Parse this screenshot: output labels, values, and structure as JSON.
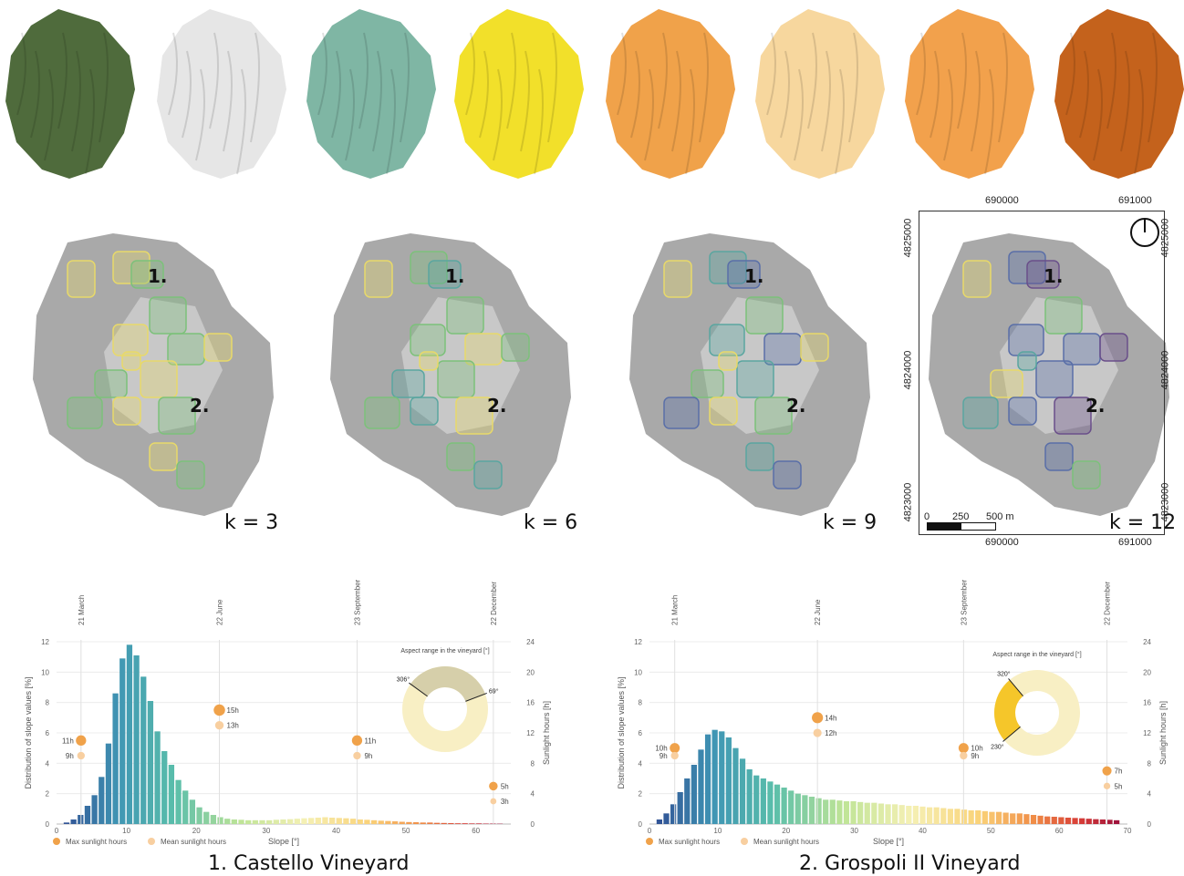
{
  "top_maps": [
    {
      "name": "aerial",
      "fill": "#4f6b3c"
    },
    {
      "name": "vineyards-outline",
      "fill": "#e6e6e6"
    },
    {
      "name": "slope",
      "fill": "#7fb6a4"
    },
    {
      "name": "aspect",
      "fill": "#f2e02a"
    },
    {
      "name": "sun-march",
      "fill": "#f0a24a"
    },
    {
      "name": "sun-june",
      "fill": "#f7d79e"
    },
    {
      "name": "sun-september",
      "fill": "#f2a14c"
    },
    {
      "name": "sun-december",
      "fill": "#c4621c"
    }
  ],
  "cluster_maps": [
    {
      "k_label": "k = 3",
      "label_1": "1.",
      "label_2": "2.",
      "accent": "#e8d96a"
    },
    {
      "k_label": "k = 6",
      "label_1": "1.",
      "label_2": "2.",
      "accent": "#7cc17a"
    },
    {
      "k_label": "k = 9",
      "label_1": "1.",
      "label_2": "2.",
      "accent": "#5aa6a0"
    },
    {
      "k_label": "k = 12",
      "label_1": "1.",
      "label_2": "2.",
      "accent": "#5a6fa8"
    }
  ],
  "coords": {
    "x_left": "690000",
    "x_right": "691000",
    "y_top": "4825000",
    "y_mid": "4824000",
    "y_bottom": "4823000",
    "scale_0": "0",
    "scale_250": "250",
    "scale_500": "500 m"
  },
  "charts": [
    {
      "title": "1. Castello Vineyard",
      "chart_data": {
        "type": "bar",
        "xlabel": "Slope [°]",
        "ylabel": "Distribution of slope values [%]",
        "y2label": "Sunlight hours [h]",
        "xlim": [
          0,
          65
        ],
        "ylim": [
          0,
          12
        ],
        "y2lim": [
          0,
          24
        ],
        "xticks": [
          "0",
          "10",
          "20",
          "30",
          "40",
          "50",
          "60"
        ],
        "yticks": [
          "0",
          "2",
          "4",
          "6",
          "8",
          "10",
          "12"
        ],
        "y2ticks": [
          "0",
          "4",
          "8",
          "12",
          "16",
          "20",
          "24"
        ],
        "bar_values": [
          0.1,
          0.3,
          0.6,
          1.2,
          1.9,
          3.1,
          5.3,
          8.6,
          10.9,
          11.8,
          11.1,
          9.7,
          8.1,
          6.1,
          4.8,
          3.9,
          2.9,
          2.2,
          1.6,
          1.1,
          0.8,
          0.6,
          0.45,
          0.35,
          0.3,
          0.28,
          0.25,
          0.25,
          0.25,
          0.25,
          0.28,
          0.3,
          0.32,
          0.35,
          0.38,
          0.4,
          0.42,
          0.45,
          0.42,
          0.4,
          0.38,
          0.35,
          0.3,
          0.28,
          0.25,
          0.22,
          0.2,
          0.18,
          0.15,
          0.13,
          0.12,
          0.1,
          0.1,
          0.08,
          0.07,
          0.06,
          0.05,
          0.05,
          0.04,
          0.04,
          0.03,
          0.03,
          0.02
        ],
        "dates": [
          {
            "label": "21 March",
            "x": 3.5,
            "max_h": 11,
            "mean_h": 9,
            "max_label": "11h",
            "mean_label": "9h"
          },
          {
            "label": "22 June",
            "x": 23.3,
            "max_h": 15,
            "mean_h": 13,
            "max_label": "15h",
            "mean_label": "13h"
          },
          {
            "label": "23 September",
            "x": 43,
            "max_h": 11,
            "mean_h": 9,
            "max_label": "11h",
            "mean_label": "9h"
          },
          {
            "label": "22 December",
            "x": 62.5,
            "max_h": 5,
            "mean_h": 3,
            "max_label": "5h",
            "mean_label": "3h"
          }
        ],
        "legend": {
          "max": "Max sunlight hours",
          "mean": "Mean sunlight hours"
        },
        "donut": {
          "title": "Aspect range in the vineyard [°]",
          "start_label": "306°",
          "end_label": "69°",
          "start_deg": 306,
          "end_deg": 69
        }
      }
    },
    {
      "title": "2. Grospoli II Vineyard",
      "chart_data": {
        "type": "bar",
        "xlabel": "Slope [°]",
        "ylabel": "Distribution of slope values [%]",
        "y2label": "Sunlight hours [h]",
        "xlim": [
          0,
          70
        ],
        "ylim": [
          0,
          12
        ],
        "y2lim": [
          0,
          24
        ],
        "xticks": [
          "0",
          "10",
          "20",
          "30",
          "40",
          "50",
          "60",
          "70"
        ],
        "yticks": [
          "0",
          "2",
          "4",
          "6",
          "8",
          "10",
          "12"
        ],
        "y2ticks": [
          "0",
          "4",
          "8",
          "12",
          "16",
          "20",
          "24"
        ],
        "bar_values": [
          0.3,
          0.7,
          1.3,
          2.1,
          3.0,
          3.9,
          4.9,
          5.9,
          6.2,
          6.1,
          5.7,
          5.0,
          4.3,
          3.6,
          3.2,
          3.0,
          2.8,
          2.6,
          2.4,
          2.2,
          2.0,
          1.9,
          1.8,
          1.7,
          1.6,
          1.6,
          1.55,
          1.5,
          1.5,
          1.45,
          1.4,
          1.4,
          1.35,
          1.3,
          1.3,
          1.25,
          1.2,
          1.2,
          1.15,
          1.1,
          1.1,
          1.05,
          1.0,
          1.0,
          0.95,
          0.9,
          0.9,
          0.85,
          0.8,
          0.8,
          0.75,
          0.7,
          0.7,
          0.65,
          0.6,
          0.55,
          0.5,
          0.48,
          0.45,
          0.42,
          0.4,
          0.38,
          0.35,
          0.32,
          0.3,
          0.28,
          0.25
        ],
        "dates": [
          {
            "label": "21 March",
            "x": 3.7,
            "max_h": 10,
            "mean_h": 9,
            "max_label": "10h",
            "mean_label": "9h"
          },
          {
            "label": "22 June",
            "x": 24.6,
            "max_h": 14,
            "mean_h": 12,
            "max_label": "14h",
            "mean_label": "12h"
          },
          {
            "label": "23 September",
            "x": 46,
            "max_h": 10,
            "mean_h": 9,
            "max_label": "10h",
            "mean_label": "9h"
          },
          {
            "label": "22 December",
            "x": 67,
            "max_h": 7,
            "mean_h": 5,
            "max_label": "7h",
            "mean_label": "5h"
          }
        ],
        "legend": {
          "max": "Max sunlight hours",
          "mean": "Mean sunlight hours"
        },
        "donut": {
          "title": "Aspect range in the vineyard [°]",
          "start_label": "230°",
          "end_label": "320°",
          "start_deg": 230,
          "end_deg": 320
        }
      }
    }
  ]
}
